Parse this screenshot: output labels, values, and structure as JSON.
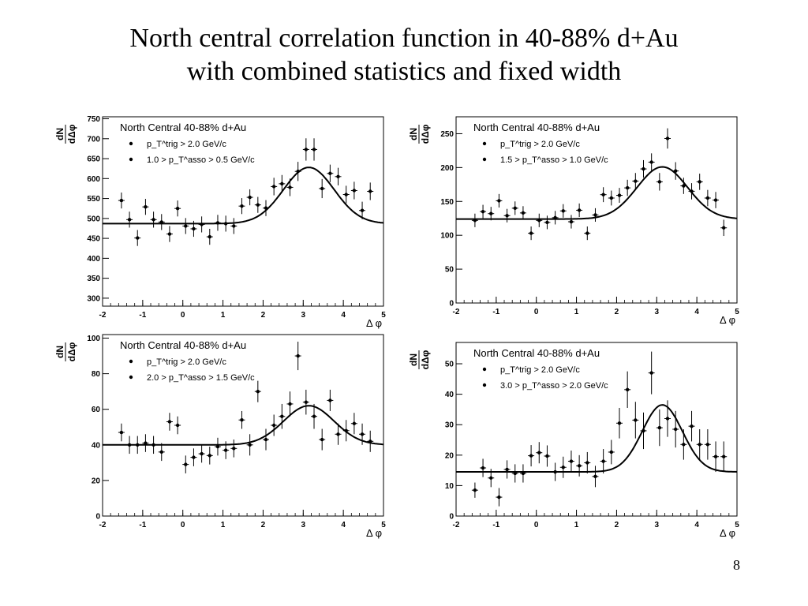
{
  "slide": {
    "title_line1": "North central correlation function in 40-88% d+Au",
    "title_line2": "with combined statistics and fixed width",
    "page_number": "8"
  },
  "chart_data": [
    {
      "type": "scatter",
      "panel_title": "North Central 40-88% d+Au",
      "legend": [
        "p_T^trig > 2.0 GeV/c",
        "1.0 > p_T^asso > 0.5 GeV/c"
      ],
      "ylabel_top": "dN",
      "ylabel_bottom": "dΔφ",
      "xlabel": "Δ φ",
      "xlim": [
        -2,
        5
      ],
      "ylim": [
        280,
        755
      ],
      "xticks": [
        -2,
        -1,
        0,
        1,
        2,
        3,
        4,
        5
      ],
      "yticks": [
        300,
        350,
        400,
        450,
        500,
        550,
        600,
        650,
        700,
        750
      ],
      "fit": {
        "baseline": 487,
        "peak": 628,
        "center": 3.14,
        "sigma": 0.63
      },
      "points": {
        "x": [
          -1.53,
          -1.33,
          -1.13,
          -0.93,
          -0.73,
          -0.53,
          -0.33,
          -0.13,
          0.07,
          0.27,
          0.47,
          0.67,
          0.87,
          1.07,
          1.27,
          1.47,
          1.67,
          1.87,
          2.07,
          2.27,
          2.47,
          2.67,
          2.87,
          3.07,
          3.27,
          3.47,
          3.67,
          3.87,
          4.07,
          4.27,
          4.47,
          4.67
        ],
        "y": [
          545,
          497,
          451,
          529,
          497,
          491,
          461,
          525,
          481,
          474,
          485,
          454,
          489,
          487,
          481,
          531,
          553,
          534,
          526,
          580,
          587,
          578,
          618,
          673,
          673,
          575,
          613,
          605,
          560,
          570,
          520,
          568
        ],
        "err": [
          20,
          20,
          20,
          20,
          20,
          20,
          20,
          20,
          20,
          20,
          20,
          20,
          20,
          20,
          20,
          20,
          20,
          20,
          20,
          22,
          22,
          22,
          24,
          28,
          28,
          24,
          22,
          22,
          22,
          22,
          22,
          22
        ]
      }
    },
    {
      "type": "scatter",
      "panel_title": "North Central 40-88% d+Au",
      "legend": [
        "p_T^trig > 2.0 GeV/c",
        "1.5 > p_T^asso > 1.0 GeV/c"
      ],
      "ylabel_top": "dN",
      "ylabel_bottom": "dΔφ",
      "xlabel": "Δ φ",
      "xlim": [
        -2,
        5
      ],
      "ylim": [
        0,
        275
      ],
      "xticks": [
        -2,
        -1,
        0,
        1,
        2,
        3,
        4,
        5
      ],
      "yticks": [
        0,
        50,
        100,
        150,
        200,
        250
      ],
      "fit": {
        "baseline": 124,
        "peak": 201,
        "center": 3.14,
        "sigma": 0.63
      },
      "points": {
        "x": [
          -1.53,
          -1.33,
          -1.13,
          -0.93,
          -0.73,
          -0.53,
          -0.33,
          -0.13,
          0.07,
          0.27,
          0.47,
          0.67,
          0.87,
          1.07,
          1.27,
          1.47,
          1.67,
          1.87,
          2.07,
          2.27,
          2.47,
          2.67,
          2.87,
          3.07,
          3.27,
          3.47,
          3.67,
          3.87,
          4.07,
          4.27,
          4.47,
          4.67
        ],
        "y": [
          122,
          135,
          132,
          151,
          129,
          140,
          133,
          103,
          122,
          119,
          126,
          136,
          120,
          137,
          103,
          130,
          160,
          155,
          159,
          170,
          180,
          198,
          208,
          179,
          243,
          195,
          173,
          165,
          179,
          155,
          152,
          111
        ],
        "err": [
          10,
          10,
          10,
          10,
          10,
          10,
          10,
          10,
          10,
          10,
          10,
          10,
          10,
          10,
          10,
          10,
          11,
          11,
          11,
          12,
          12,
          13,
          13,
          13,
          15,
          13,
          12,
          12,
          12,
          12,
          12,
          12
        ]
      }
    },
    {
      "type": "scatter",
      "panel_title": "North Central 40-88% d+Au",
      "legend": [
        "p_T^trig > 2.0 GeV/c",
        "2.0 > p_T^asso > 1.5 GeV/c"
      ],
      "ylabel_top": "dN",
      "ylabel_bottom": "dΔφ",
      "xlabel": "Δ φ",
      "xlim": [
        -2,
        5
      ],
      "ylim": [
        0,
        102
      ],
      "xticks": [
        -2,
        -1,
        0,
        1,
        2,
        3,
        4,
        5
      ],
      "yticks": [
        0,
        20,
        40,
        60,
        80,
        100
      ],
      "fit": {
        "baseline": 40,
        "peak": 62,
        "center": 3.14,
        "sigma": 0.63
      },
      "points": {
        "x": [
          -1.53,
          -1.33,
          -1.13,
          -0.93,
          -0.73,
          -0.53,
          -0.33,
          -0.13,
          0.07,
          0.27,
          0.47,
          0.67,
          0.87,
          1.07,
          1.27,
          1.47,
          1.67,
          1.87,
          2.07,
          2.27,
          2.47,
          2.67,
          2.87,
          3.07,
          3.27,
          3.47,
          3.67,
          3.87,
          4.07,
          4.27,
          4.47,
          4.67
        ],
        "y": [
          47,
          40,
          40,
          41,
          40,
          36,
          53,
          51,
          29,
          33,
          35,
          34,
          39,
          37,
          38,
          54,
          40,
          70,
          43,
          51,
          56,
          63,
          90,
          64,
          56,
          43,
          65,
          46,
          48,
          52,
          46,
          42
        ],
        "err": [
          5,
          5,
          5,
          5,
          5,
          5,
          5,
          5,
          5,
          5,
          5,
          5,
          5,
          5,
          5,
          5,
          6,
          6,
          6,
          6,
          7,
          7,
          8,
          7,
          7,
          6,
          6,
          6,
          6,
          6,
          6,
          6
        ]
      }
    },
    {
      "type": "scatter",
      "panel_title": "North Central 40-88% d+Au",
      "legend": [
        "p_T^trig > 2.0 GeV/c",
        "3.0 > p_T^asso > 2.0 GeV/c"
      ],
      "ylabel_top": "dN",
      "ylabel_bottom": "dΔφ",
      "xlabel": "Δ φ",
      "xlim": [
        -2,
        5
      ],
      "ylim": [
        0,
        57
      ],
      "xticks": [
        -2,
        -1,
        0,
        1,
        2,
        3,
        4,
        5
      ],
      "yticks": [
        0,
        10,
        20,
        30,
        40,
        50
      ],
      "fit": {
        "baseline": 14.5,
        "peak": 36.5,
        "center": 3.14,
        "sigma": 0.5
      },
      "points": {
        "x": [
          -1.53,
          -1.33,
          -1.13,
          -0.93,
          -0.73,
          -0.53,
          -0.33,
          -0.13,
          0.07,
          0.27,
          0.47,
          0.67,
          0.87,
          1.07,
          1.27,
          1.47,
          1.67,
          1.87,
          2.07,
          2.27,
          2.47,
          2.67,
          2.87,
          3.07,
          3.27,
          3.47,
          3.67,
          3.87,
          4.07,
          4.27,
          4.47,
          4.67
        ],
        "y": [
          8.5,
          15.8,
          12.5,
          6.2,
          15.3,
          14,
          14,
          19.8,
          20.8,
          19.7,
          14.5,
          16,
          18,
          16.5,
          17.5,
          13,
          18,
          21,
          30.5,
          41.5,
          31.5,
          28,
          47,
          29,
          32,
          28.5,
          23.5,
          29.5,
          23.5,
          23.5,
          19.5,
          19.5
        ],
        "err": [
          2.5,
          3,
          3,
          3,
          3,
          3,
          3,
          3.5,
          3.5,
          3.5,
          3,
          3.5,
          3.5,
          3.5,
          3.5,
          3.5,
          4,
          4,
          5,
          6,
          6,
          6,
          7,
          6,
          6,
          6,
          5,
          5,
          5,
          5,
          5,
          5
        ]
      }
    }
  ]
}
